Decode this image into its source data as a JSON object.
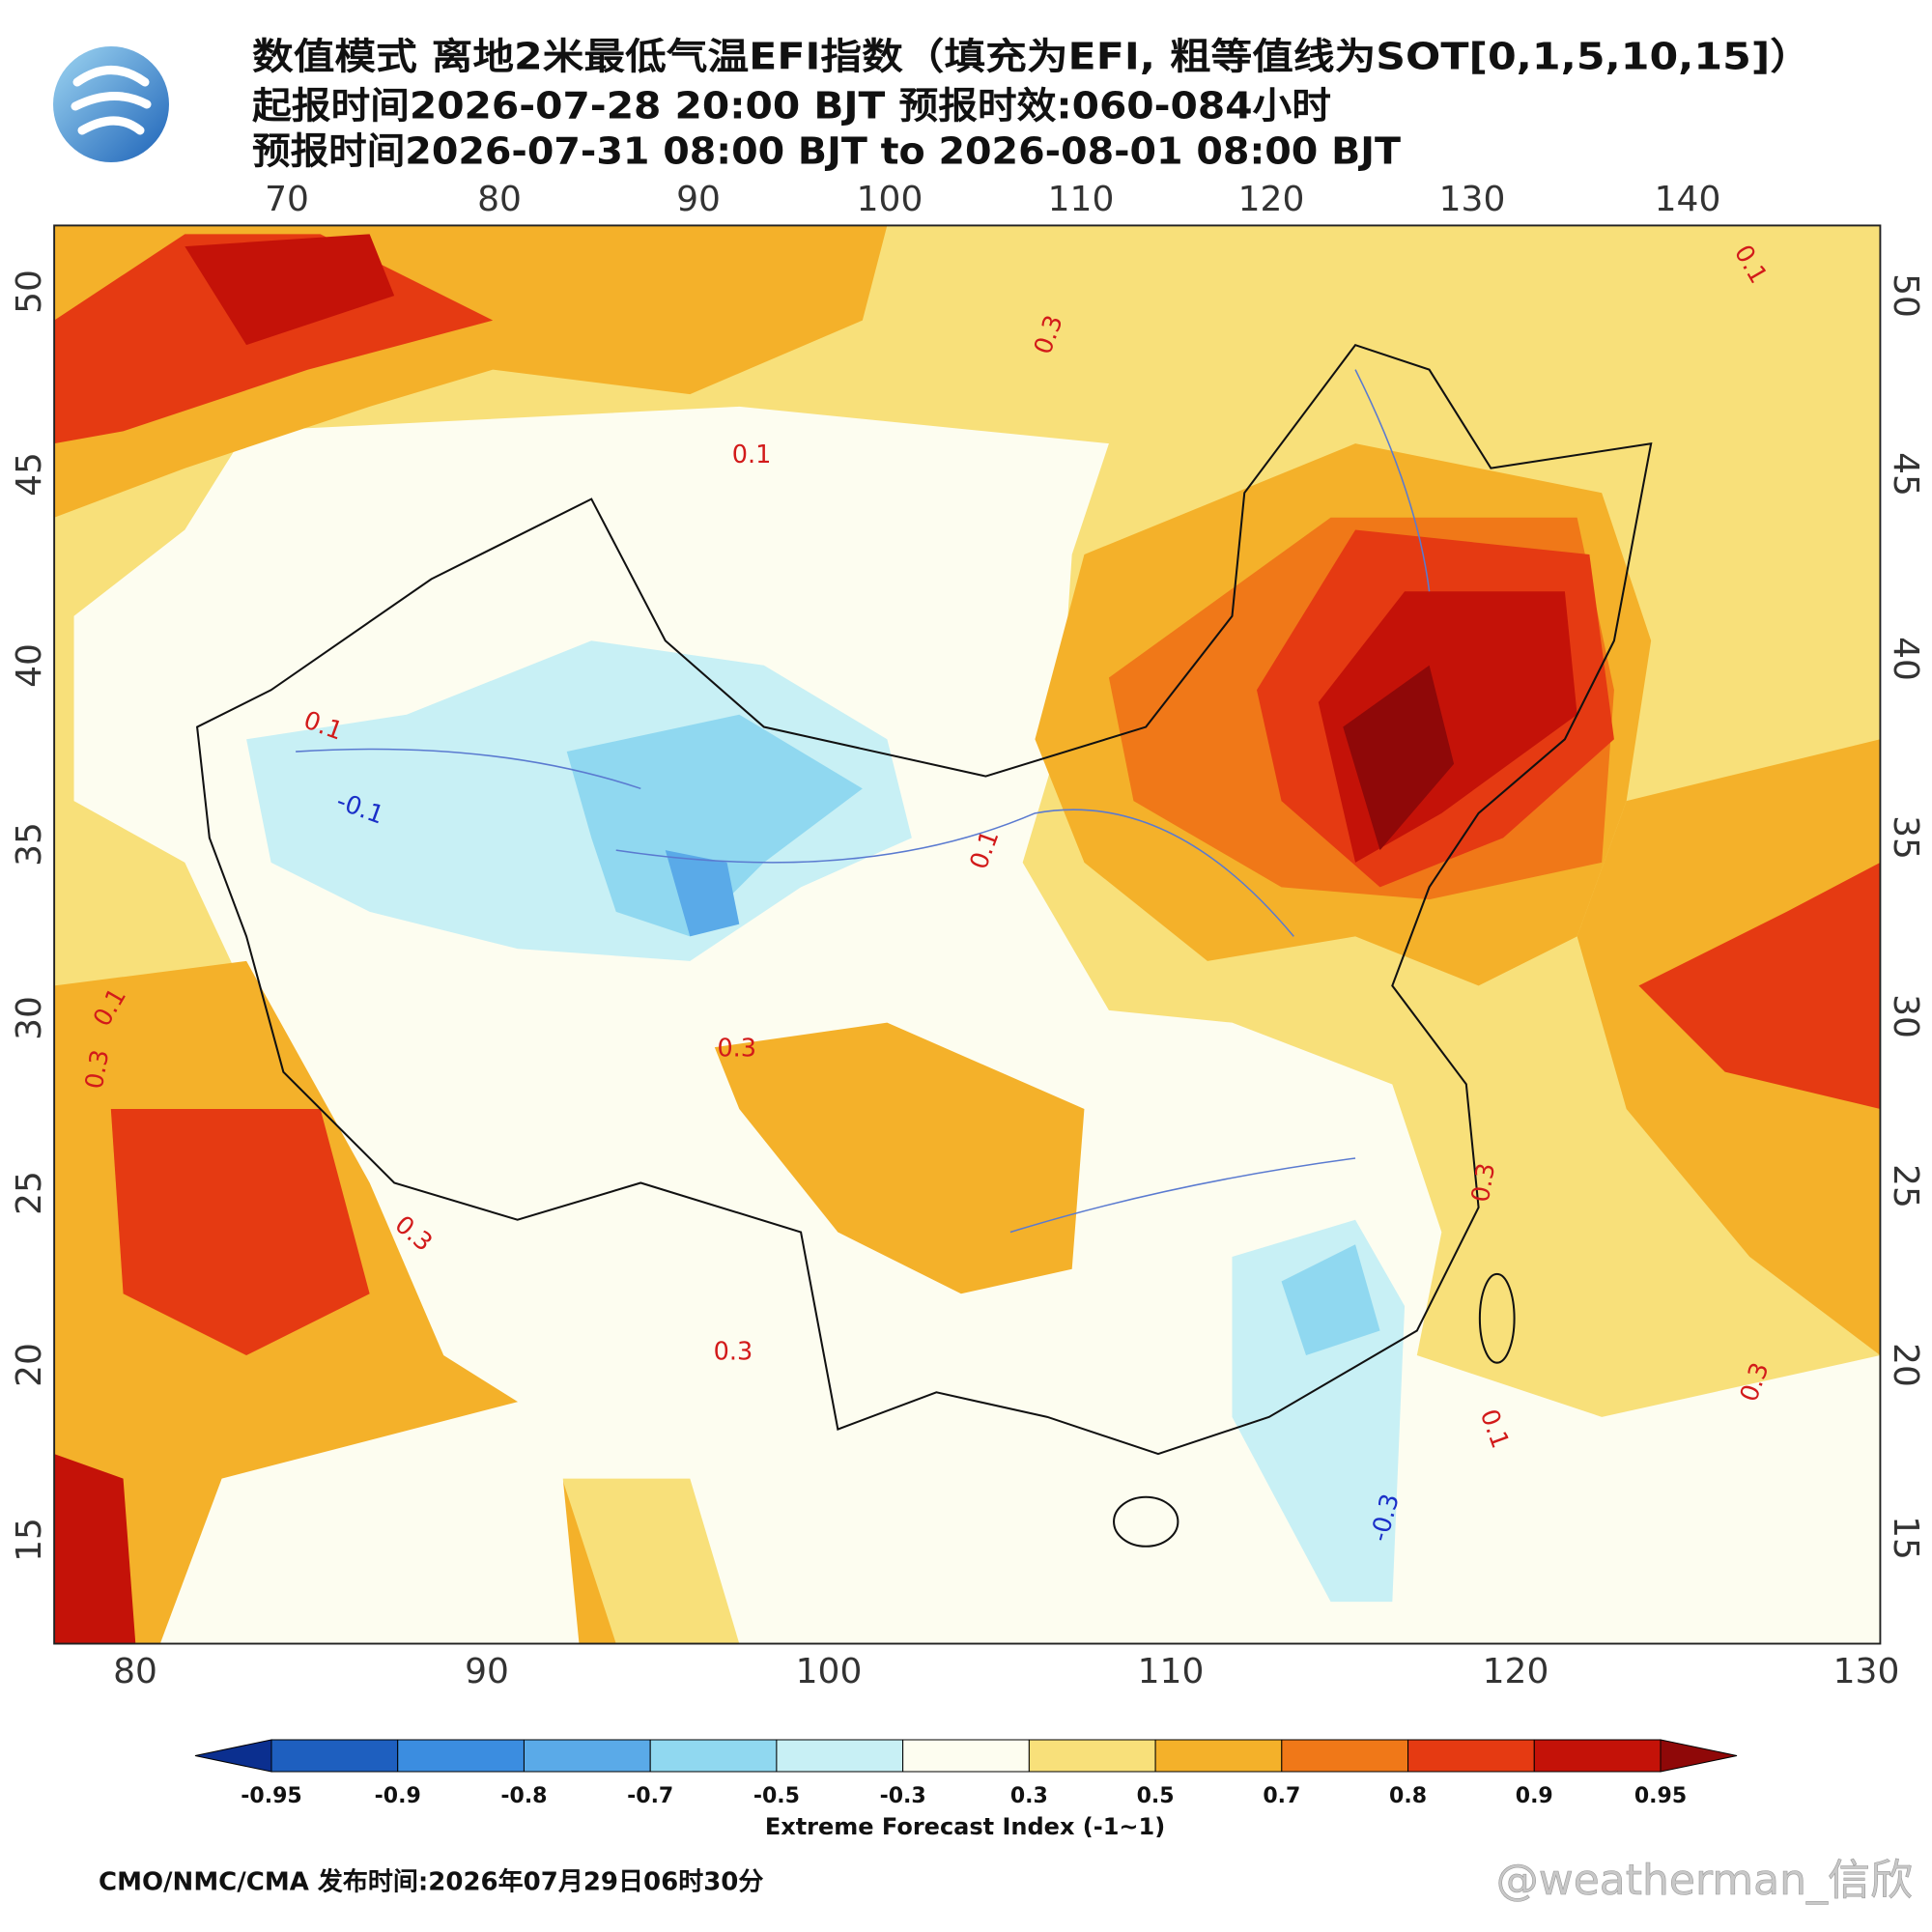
{
  "header": {
    "title_lines": [
      "数值模式 离地2米最低气温EFI指数（填充为EFI, 粗等值线为SOT[0,1,5,10,15]）",
      "起报时间2026-07-28 20:00 BJT 预报时效:060-084小时",
      "预报时间2026-07-31 08:00 BJT to 2026-08-01 08:00 BJT"
    ]
  },
  "map": {
    "top_lon_labels": [
      70,
      80,
      90,
      100,
      110,
      120,
      130,
      140
    ],
    "bottom_lon_labels": [
      80,
      90,
      100,
      110,
      120,
      130
    ],
    "left_lat_labels": [
      50,
      45,
      40,
      35,
      30,
      25,
      20,
      15
    ],
    "right_lat_labels": [
      50,
      45,
      40,
      35,
      30,
      25,
      20,
      15
    ],
    "contour_labels": [
      "0.1",
      "0.3",
      "0.1",
      "-0.1",
      "0.3",
      "0.3",
      "0.1",
      "0.3",
      "0.1",
      "-0.3",
      "0.3",
      "0.1",
      "0.3",
      "0.1",
      "0.3"
    ]
  },
  "colorbar": {
    "ticks": [
      -0.95,
      -0.9,
      -0.8,
      -0.7,
      -0.5,
      -0.3,
      0.3,
      0.5,
      0.7,
      0.8,
      0.9,
      0.95
    ],
    "colors": [
      "#0b2f8f",
      "#1e5fbf",
      "#3b8de0",
      "#5aaae8",
      "#90d8f0",
      "#c8f0f5",
      "#fdfdf0",
      "#f8e07a",
      "#f4b12a",
      "#f07818",
      "#e53a12",
      "#c41208",
      "#8f0808"
    ],
    "label": "Extreme Forecast Index (-1~1)"
  },
  "footer": {
    "source": "CMO/NMC/CMA 发布时间:2026年07月29日06时30分",
    "watermark": "@weatherman_信欣"
  }
}
